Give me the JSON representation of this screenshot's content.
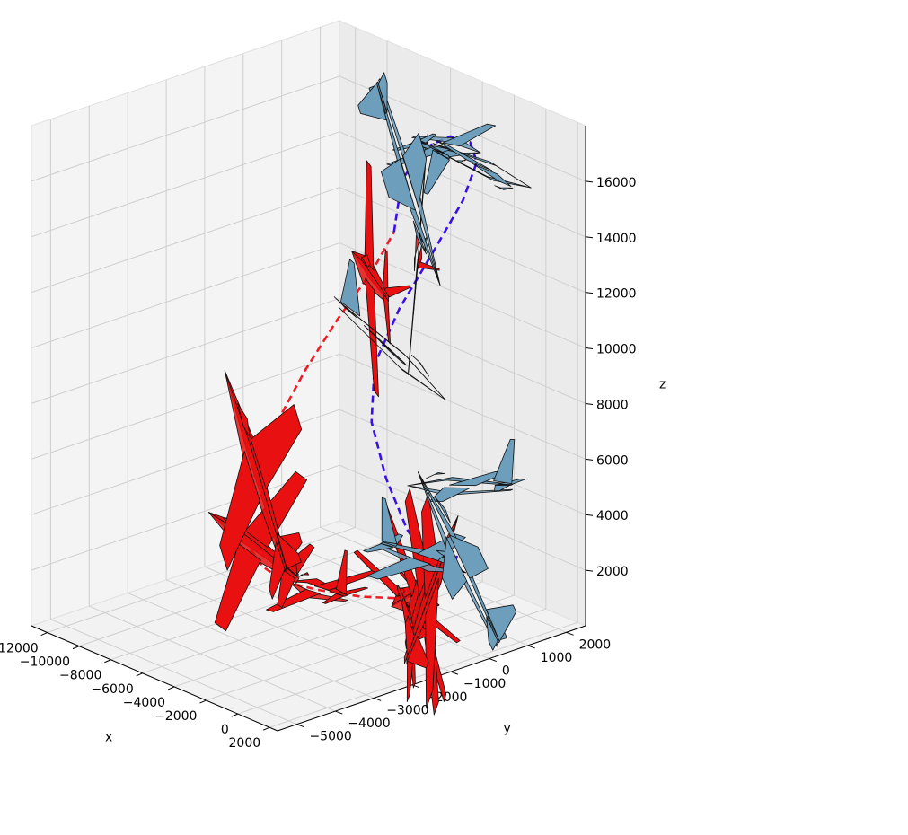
{
  "chart_data": {
    "type": "line",
    "projection": "3d",
    "title": "",
    "xlabel": "x",
    "ylabel": "y",
    "zlabel": "z",
    "xlim": [
      -13000,
      2500
    ],
    "ylim": [
      -5500,
      2500
    ],
    "zlim": [
      0,
      18000
    ],
    "x_ticks": [
      -12000,
      -10000,
      -8000,
      -6000,
      -4000,
      -2000,
      0,
      2000
    ],
    "y_ticks": [
      -5000,
      -4000,
      -3000,
      -2000,
      -1000,
      0,
      1000,
      2000
    ],
    "z_ticks": [
      2000,
      4000,
      6000,
      8000,
      10000,
      12000,
      14000,
      16000
    ],
    "x_tick_labels": [
      "−12000",
      "−10000",
      "−8000",
      "−6000",
      "−4000",
      "−2000",
      "0",
      "2000"
    ],
    "y_tick_labels": [
      "−5000",
      "−4000",
      "−3000",
      "−2000",
      "−1000",
      "0",
      "1000",
      "2000"
    ],
    "z_tick_labels": [
      "2000",
      "4000",
      "6000",
      "8000",
      "10000",
      "12000",
      "14000",
      "16000"
    ],
    "grid": true,
    "series": [
      {
        "color": "#ee1c24",
        "linestyle": "dashed",
        "aircraft_color": "#e81010",
        "x": [
          -2000,
          -3900,
          -5900,
          -7700,
          -9400,
          -10700,
          -11600,
          -12000,
          -11700,
          -10800,
          -9500,
          -8000,
          -6900
        ],
        "y": [
          -300,
          -700,
          -1000,
          -1100,
          -1000,
          -800,
          -500,
          -100,
          300,
          700,
          1000,
          1300,
          1400
        ],
        "z": [
          1200,
          1000,
          900,
          800,
          900,
          1200,
          2000,
          3200,
          4800,
          6800,
          8800,
          10800,
          12400
        ]
      },
      {
        "color": "#3a0fe8",
        "linestyle": "dashed",
        "aircraft_color": "#6d9fbd",
        "x": [
          -6900,
          -6400,
          -5200,
          -3600,
          -2100,
          -1200,
          -1600,
          -3000,
          -4600,
          -5700,
          -5400,
          -4000,
          -2200,
          -500,
          700,
          1000
        ],
        "y": [
          1400,
          1400,
          1500,
          1500,
          1400,
          1200,
          1000,
          800,
          600,
          400,
          200,
          0,
          -200,
          -300,
          -300,
          -200
        ],
        "z": [
          12400,
          14400,
          15800,
          16600,
          16800,
          16400,
          15000,
          12900,
          10600,
          8400,
          6500,
          4900,
          3600,
          2800,
          2600,
          3500
        ]
      }
    ],
    "aircraft": [
      {
        "series": 0,
        "x": -2100,
        "y": -300,
        "z": 1200,
        "yaw": 170,
        "pitch": -10,
        "roll": 30
      },
      {
        "series": 0,
        "x": -1600,
        "y": -200,
        "z": 1300,
        "yaw": 150,
        "pitch": 5,
        "roll": 60
      },
      {
        "series": 0,
        "x": -1300,
        "y": -100,
        "z": 1500,
        "yaw": 140,
        "pitch": 15,
        "roll": 80
      },
      {
        "series": 0,
        "x": -1000,
        "y": -50,
        "z": 1700,
        "yaw": 130,
        "pitch": 25,
        "roll": 100
      },
      {
        "series": 0,
        "x": -5900,
        "y": -1000,
        "z": 900,
        "yaw": 185,
        "pitch": 0,
        "roll": 0
      },
      {
        "series": 0,
        "x": -10200,
        "y": -900,
        "z": 1400,
        "yaw": 205,
        "pitch": 15,
        "roll": -30
      },
      {
        "series": 0,
        "x": -12000,
        "y": -100,
        "z": 3300,
        "yaw": 260,
        "pitch": 60,
        "roll": -60
      },
      {
        "series": 0,
        "x": -8200,
        "y": 1300,
        "z": 10600,
        "yaw": 320,
        "pitch": 20,
        "roll": -80
      },
      {
        "series": 0,
        "x": -5600,
        "y": 1500,
        "z": 12000,
        "yaw": 340,
        "pitch": 15,
        "roll": -100
      },
      {
        "series": 1,
        "x": -3800,
        "y": 1500,
        "z": 16200,
        "yaw": 10,
        "pitch": 0,
        "roll": 180
      },
      {
        "series": 1,
        "x": -1100,
        "y": 1300,
        "z": 16200,
        "yaw": 30,
        "pitch": -10,
        "roll": 160
      },
      {
        "series": 1,
        "x": -5700,
        "y": 1300,
        "z": 14500,
        "yaw": 60,
        "pitch": -60,
        "roll": 150
      },
      {
        "series": 1,
        "x": -4800,
        "y": 500,
        "z": 9000,
        "yaw": 80,
        "pitch": -30,
        "roll": 0
      },
      {
        "series": 1,
        "x": -900,
        "y": -300,
        "z": 2900,
        "yaw": 20,
        "pitch": -5,
        "roll": 0
      },
      {
        "series": 1,
        "x": 1000,
        "y": -150,
        "z": 5900,
        "yaw": 280,
        "pitch": 10,
        "roll": 10
      },
      {
        "series": 1,
        "x": 900,
        "y": -150,
        "z": 3300,
        "yaw": 250,
        "pitch": 50,
        "roll": 20
      }
    ]
  }
}
